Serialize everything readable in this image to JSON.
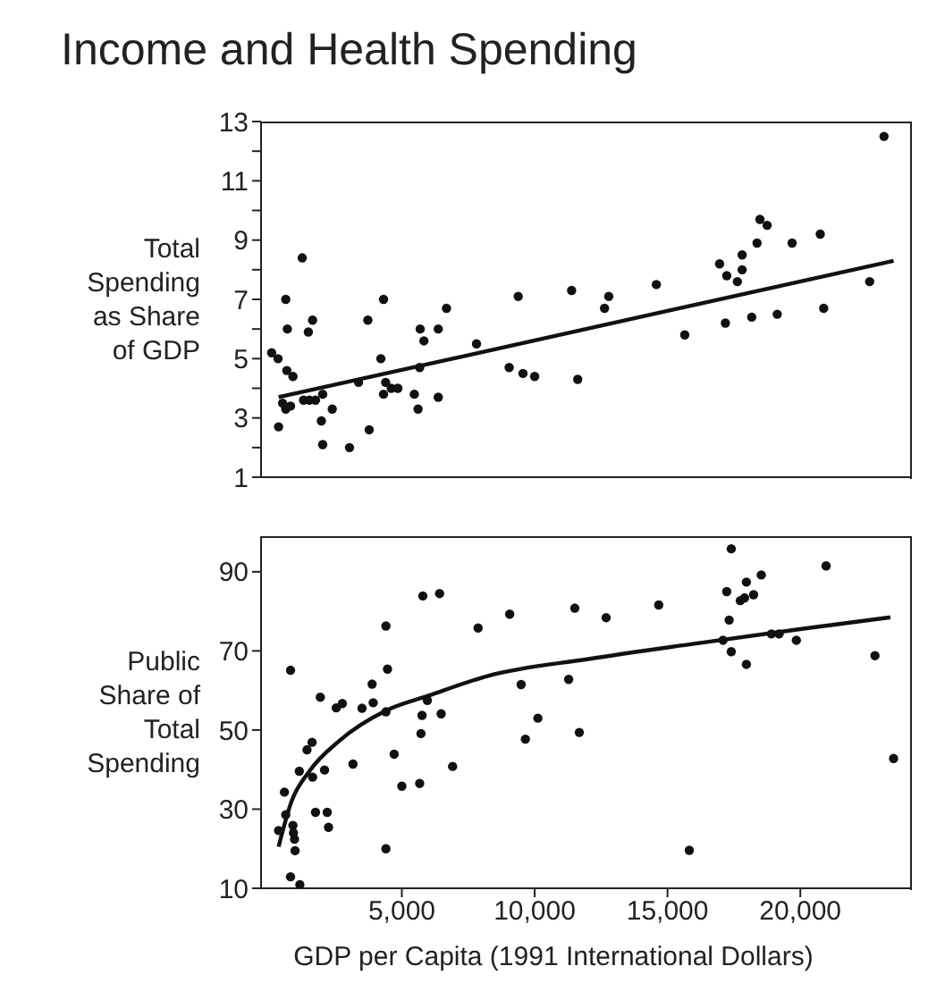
{
  "chart_data": [
    {
      "type": "scatter",
      "title": "Income and Health Spending",
      "ylabel": "Total Spending as Share of GDP",
      "xlim": [
        -300,
        24200
      ],
      "xticks": [
        {
          "value": 5000,
          "label": null
        },
        {
          "value": 10000,
          "label": null
        },
        {
          "value": 15000,
          "label": null
        },
        {
          "value": 20000,
          "label": null
        }
      ],
      "ylim": [
        1,
        13
      ],
      "yticks": [
        1,
        {
          "value": 2,
          "label": null
        },
        3,
        {
          "value": 4,
          "label": null
        },
        5,
        {
          "value": 6,
          "label": null
        },
        7,
        {
          "value": 8,
          "label": null
        },
        9,
        {
          "value": 10,
          "label": null
        },
        11,
        {
          "value": 12,
          "label": null
        },
        13
      ],
      "tick_labels": "y",
      "marker": "circle",
      "series": [
        {
          "type": "scatter",
          "color": "#111111",
          "x": [
            100,
            340,
            630,
            690,
            1250,
            670,
            900,
            360,
            510,
            630,
            810,
            1300,
            1520,
            1750,
            2020,
            1480,
            1640,
            1970,
            2020,
            2380,
            3030,
            3370,
            3720,
            3770,
            4210,
            4310,
            4310,
            4390,
            4600,
            4850,
            5470,
            5610,
            5670,
            5690,
            5830,
            6370,
            6370,
            6680,
            7810,
            9040,
            9380,
            9560,
            10000,
            11390,
            11620,
            12630,
            12790,
            14580,
            15650,
            16960,
            17230,
            17180,
            17630,
            17810,
            17810,
            18170,
            18370,
            18480,
            18750,
            19130,
            19690,
            20750,
            20880,
            22610,
            23150
          ],
          "values": [
            5.2,
            5.0,
            7.0,
            6.0,
            8.4,
            4.6,
            4.4,
            2.7,
            3.5,
            3.3,
            3.4,
            3.6,
            3.6,
            3.6,
            3.8,
            5.9,
            6.3,
            2.9,
            2.1,
            3.3,
            2.0,
            4.2,
            6.3,
            2.6,
            5.0,
            7.0,
            3.8,
            4.2,
            4.0,
            4.0,
            3.8,
            3.3,
            4.7,
            6.0,
            5.6,
            6.0,
            3.7,
            6.7,
            5.5,
            4.7,
            7.1,
            4.5,
            4.4,
            7.3,
            4.3,
            6.7,
            7.1,
            7.5,
            5.8,
            8.2,
            7.8,
            6.2,
            7.6,
            8.0,
            8.5,
            6.4,
            8.9,
            9.7,
            9.5,
            6.5,
            8.9,
            9.2,
            6.7,
            7.6,
            12.5
          ]
        },
        {
          "type": "line",
          "color": "#111111",
          "marker": "none",
          "x": [
            360,
            23510
          ],
          "values": [
            3.7,
            8.3
          ]
        }
      ]
    },
    {
      "type": "scatter",
      "ylabel": "Public Share of Total Spending",
      "xlabel": "GDP per Capita (1991 International Dollars)",
      "xlim": [
        -300,
        24200
      ],
      "xticks": [
        {
          "value": 5000,
          "label": "5,000"
        },
        {
          "value": 10000,
          "label": "10,000"
        },
        {
          "value": 15000,
          "label": "15,000"
        },
        {
          "value": 20000,
          "label": "20,000"
        }
      ],
      "ylim": [
        10,
        99
      ],
      "yticks": [
        10,
        30,
        50,
        70,
        90
      ],
      "marker": "circle",
      "series": [
        {
          "type": "scatter",
          "color": "#111111",
          "x": [
            360,
            580,
            630,
            810,
            900,
            920,
            960,
            980,
            810,
            1160,
            1140,
            1430,
            1620,
            1640,
            1750,
            1930,
            2090,
            2190,
            2240,
            2530,
            2760,
            3160,
            3500,
            3880,
            3920,
            4400,
            4460,
            4400,
            4400,
            4710,
            5000,
            5670,
            5720,
            5760,
            5790,
            5960,
            6420,
            6480,
            6910,
            7870,
            9060,
            9490,
            9650,
            10120,
            11280,
            11510,
            11680,
            12690,
            14670,
            15820,
            17090,
            17230,
            17320,
            17400,
            17400,
            17740,
            17900,
            17970,
            17970,
            18240,
            18530,
            18910,
            19200,
            19850,
            20970,
            22810,
            23510
          ],
          "values": [
            24.6,
            34.3,
            28.6,
            65.1,
            25.9,
            24.0,
            22.4,
            19.5,
            12.9,
            10.9,
            39.6,
            45.0,
            46.9,
            38.1,
            29.2,
            58.3,
            39.9,
            29.2,
            25.4,
            55.6,
            56.7,
            41.4,
            55.5,
            61.6,
            56.9,
            76.3,
            65.4,
            54.6,
            20.0,
            43.9,
            35.8,
            36.5,
            49.1,
            53.7,
            83.9,
            57.5,
            84.5,
            54.1,
            40.8,
            75.8,
            79.3,
            61.5,
            47.7,
            53.0,
            62.8,
            80.8,
            49.4,
            78.4,
            81.6,
            19.6,
            72.7,
            85.0,
            77.8,
            69.8,
            95.8,
            82.7,
            83.4,
            87.4,
            66.6,
            84.2,
            89.2,
            74.3,
            74.3,
            72.7,
            91.5,
            68.8,
            42.8
          ]
        },
        {
          "type": "line",
          "color": "#111111",
          "marker": "none",
          "x": [
            360,
            850,
            1520,
            2650,
            4400,
            6010,
            8250,
            12070,
            15880,
            19990,
            23390
          ],
          "values": [
            20.5,
            32,
            39.6,
            47.3,
            54.9,
            58.7,
            63.7,
            68,
            71.7,
            75.5,
            78.5
          ]
        }
      ]
    }
  ]
}
